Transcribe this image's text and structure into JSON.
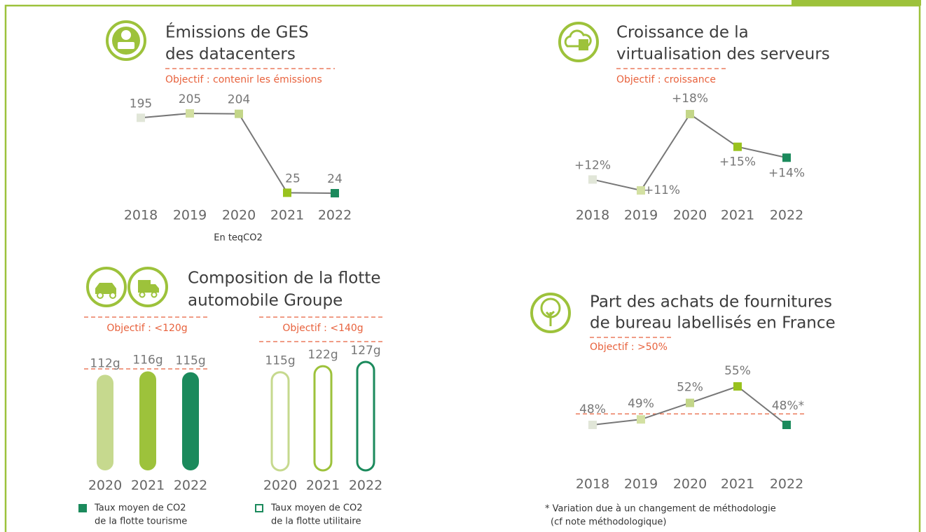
{
  "chart_data": [
    {
      "type": "line",
      "title": [
        "Émissions de GES",
        "des datacenters"
      ],
      "objective": "Objectif : contenir les émissions",
      "categories": [
        "2018",
        "2019",
        "2020",
        "2021",
        "2022"
      ],
      "values": [
        195,
        205,
        204,
        25,
        24
      ],
      "colors": [
        "#e1e6d8",
        "#d3e0a2",
        "#c3d688",
        "#99c21e",
        "#1b8a5c"
      ],
      "note": "En teqCO2"
    },
    {
      "type": "line",
      "title": [
        "Croissance de la",
        "virtualisation des serveurs"
      ],
      "objective": "Objectif : croissance",
      "categories": [
        "2018",
        "2019",
        "2020",
        "2021",
        "2022"
      ],
      "values": [
        12,
        11,
        18,
        15,
        14
      ],
      "value_labels": [
        "+12%",
        "+11%",
        "+18%",
        "+15%",
        "+14%"
      ],
      "colors": [
        "#e1e6d8",
        "#d3e0a2",
        "#c3d688",
        "#99c21e",
        "#1b8a5c"
      ]
    },
    {
      "type": "bar",
      "title": [
        "Composition de la flotte",
        "automobile Groupe"
      ],
      "categories": [
        "2020",
        "2021",
        "2022"
      ],
      "series": [
        {
          "name": [
            "Taux moyen de CO2",
            "de la flotte tourisme"
          ],
          "objective": "Objectif : <120g",
          "style": "filled",
          "values": [
            112,
            116,
            115
          ],
          "value_labels": [
            "112g",
            "116g",
            "115g"
          ],
          "colors": [
            "#c6d98e",
            "#9dc23b",
            "#1b8a5c"
          ]
        },
        {
          "name": [
            "Taux moyen de CO2",
            "de la flotte utilitaire"
          ],
          "objective": "Objectif : <140g",
          "style": "outline",
          "values": [
            115,
            122,
            127
          ],
          "value_labels": [
            "115g",
            "122g",
            "127g"
          ],
          "colors": [
            "#c6d98e",
            "#9dc23b",
            "#1b8a5c"
          ]
        }
      ]
    },
    {
      "type": "line",
      "title": [
        "Part des achats de fournitures",
        "de bureau labellisés en France"
      ],
      "objective": "Objectif : >50%",
      "objective_value": 50,
      "categories": [
        "2018",
        "2019",
        "2020",
        "2021",
        "2022"
      ],
      "values": [
        48,
        49,
        52,
        55,
        48
      ],
      "value_labels": [
        "48%",
        "49%",
        "52%",
        "55%",
        "48%*"
      ],
      "colors": [
        "#e1e6d8",
        "#d3e0a2",
        "#c3d688",
        "#99c21e",
        "#1b8a5c"
      ],
      "note": [
        "* Variation due à un changement de méthodologie",
        "(cf note méthodologique)"
      ]
    }
  ]
}
